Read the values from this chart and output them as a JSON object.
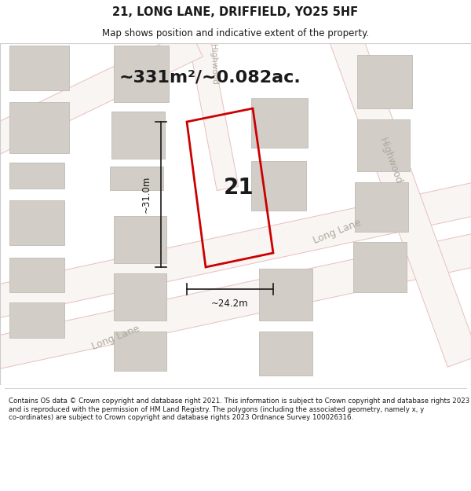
{
  "title": "21, LONG LANE, DRIFFIELD, YO25 5HF",
  "subtitle": "Map shows position and indicative extent of the property.",
  "area_text": "~331m²/~0.082ac.",
  "property_number": "21",
  "dim_width": "~24.2m",
  "dim_height": "~31.0m",
  "footer": "Contains OS data © Crown copyright and database right 2021. This information is subject to Crown copyright and database rights 2023 and is reproduced with the permission of HM Land Registry. The polygons (including the associated geometry, namely x, y co-ordinates) are subject to Crown copyright and database rights 2023 Ordnance Survey 100026316.",
  "bg_color": "#ffffff",
  "map_bg": "#ede9e4",
  "building_color": "#d2cdc7",
  "building_edge": "#bfbab4",
  "road_fill": "#f8f5f2",
  "road_edge": "#e8c0c0",
  "property_fill": "#ede9e4",
  "property_edge": "#cc0000",
  "street_label_color": "#b0a89e",
  "dim_line_color": "#1a1a1a",
  "text_color": "#1a1a1a",
  "title_fontsize": 10.5,
  "subtitle_fontsize": 8.5,
  "area_fontsize": 16,
  "number_fontsize": 20,
  "dim_fontsize": 8.5,
  "street_fontsize": 9,
  "footer_fontsize": 6.2
}
